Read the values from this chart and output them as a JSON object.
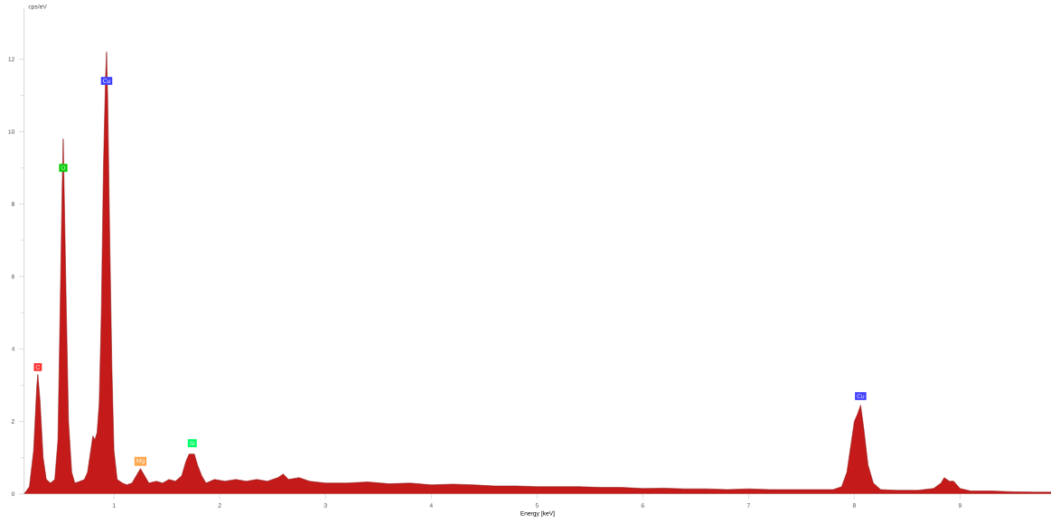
{
  "chart_data": {
    "type": "area",
    "xlabel": "Energy [keV]",
    "ylabel": "cps/eV",
    "x": [
      0.15,
      0.2,
      0.24,
      0.27,
      0.28,
      0.3,
      0.33,
      0.36,
      0.4,
      0.44,
      0.47,
      0.49,
      0.51,
      0.52,
      0.53,
      0.55,
      0.57,
      0.6,
      0.63,
      0.68,
      0.72,
      0.75,
      0.78,
      0.8,
      0.82,
      0.84,
      0.86,
      0.88,
      0.9,
      0.92,
      0.93,
      0.94,
      0.96,
      0.98,
      1.0,
      1.03,
      1.08,
      1.12,
      1.17,
      1.21,
      1.25,
      1.29,
      1.33,
      1.4,
      1.46,
      1.52,
      1.58,
      1.64,
      1.68,
      1.71,
      1.76,
      1.79,
      1.83,
      1.87,
      1.95,
      2.05,
      2.15,
      2.25,
      2.35,
      2.45,
      2.55,
      2.6,
      2.65,
      2.75,
      2.85,
      3.0,
      3.2,
      3.4,
      3.6,
      3.8,
      4.0,
      4.2,
      4.4,
      4.6,
      4.8,
      5.0,
      5.2,
      5.4,
      5.6,
      5.8,
      6.0,
      6.2,
      6.4,
      6.6,
      6.8,
      7.0,
      7.2,
      7.4,
      7.6,
      7.8,
      7.88,
      7.93,
      7.97,
      8.0,
      8.03,
      8.06,
      8.09,
      8.13,
      8.18,
      8.25,
      8.4,
      8.6,
      8.75,
      8.82,
      8.85,
      8.9,
      8.94,
      9.0,
      9.1,
      9.3,
      9.5,
      9.7,
      9.86
    ],
    "series": [
      {
        "color": "#c41a1a",
        "values": [
          0,
          0.2,
          1.2,
          3.0,
          3.3,
          2.6,
          1.0,
          0.4,
          0.3,
          0.4,
          1.5,
          5.0,
          8.5,
          9.8,
          8.2,
          5.0,
          2.0,
          0.6,
          0.3,
          0.35,
          0.4,
          0.6,
          1.2,
          1.6,
          1.5,
          1.7,
          2.5,
          5.0,
          9.0,
          11.5,
          12.2,
          11.0,
          7.0,
          3.5,
          1.2,
          0.4,
          0.3,
          0.25,
          0.3,
          0.5,
          0.7,
          0.5,
          0.3,
          0.35,
          0.3,
          0.4,
          0.35,
          0.5,
          0.9,
          1.1,
          1.1,
          0.8,
          0.5,
          0.3,
          0.4,
          0.35,
          0.4,
          0.35,
          0.4,
          0.35,
          0.45,
          0.55,
          0.4,
          0.45,
          0.35,
          0.3,
          0.3,
          0.33,
          0.28,
          0.3,
          0.25,
          0.27,
          0.25,
          0.22,
          0.22,
          0.2,
          0.2,
          0.2,
          0.18,
          0.18,
          0.15,
          0.16,
          0.14,
          0.14,
          0.12,
          0.14,
          0.12,
          0.12,
          0.12,
          0.12,
          0.2,
          0.6,
          1.4,
          2.0,
          2.2,
          2.45,
          1.8,
          0.8,
          0.3,
          0.12,
          0.1,
          0.1,
          0.15,
          0.3,
          0.45,
          0.35,
          0.35,
          0.15,
          0.08,
          0.08,
          0.06,
          0.05,
          0.05
        ]
      }
    ],
    "xlim": [
      0.15,
      9.86
    ],
    "ylim": [
      0,
      13.4
    ],
    "xticks": [
      1,
      2,
      3,
      4,
      5,
      6,
      7,
      8,
      9
    ],
    "yticks": [
      0,
      2,
      4,
      6,
      8,
      10,
      12
    ],
    "annotations": [
      {
        "text": "C",
        "x": 0.28,
        "y": 3.5
      },
      {
        "text": "O",
        "x": 0.52,
        "y": 9.0
      },
      {
        "text": "Cu",
        "x": 0.93,
        "y": 11.4
      },
      {
        "text": "Mg",
        "x": 1.25,
        "y": 0.9
      },
      {
        "text": "Si",
        "x": 1.74,
        "y": 1.4
      },
      {
        "text": "Cu",
        "x": 8.06,
        "y": 2.7
      }
    ]
  }
}
